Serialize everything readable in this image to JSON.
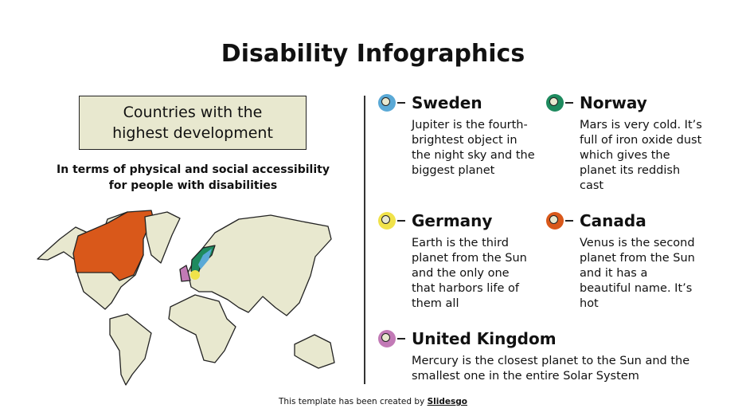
{
  "title": "Disability Infographics",
  "box": {
    "text": "Countries with the highest development"
  },
  "subtitle": "In terms of physical and social accessibility for people with disabilities",
  "countries": [
    {
      "name": "Sweden",
      "color": "#5aa9d6",
      "text": "Jupiter is the fourth-brightest object in the night sky and the biggest planet"
    },
    {
      "name": "Norway",
      "color": "#1e8a5e",
      "text": "Mars is very cold. It’s full of iron oxide dust which gives the planet its reddish cast"
    },
    {
      "name": "Germany",
      "color": "#f0e24a",
      "text": "Earth is the third planet from the Sun and the only one that harbors life of them all"
    },
    {
      "name": "Canada",
      "color": "#d9581a",
      "text": "Venus is the second planet from the Sun and it has a beautiful name. It’s hot"
    },
    {
      "name": "United Kingdom",
      "color": "#c27ab6",
      "text": "Mercury is the closest planet to the Sun and the smallest one in the entire Solar System"
    }
  ],
  "map": {
    "land_color": "#e8e8cf"
  },
  "footer": {
    "prefix": "This template has been created by ",
    "brand": "Slidesgo"
  }
}
